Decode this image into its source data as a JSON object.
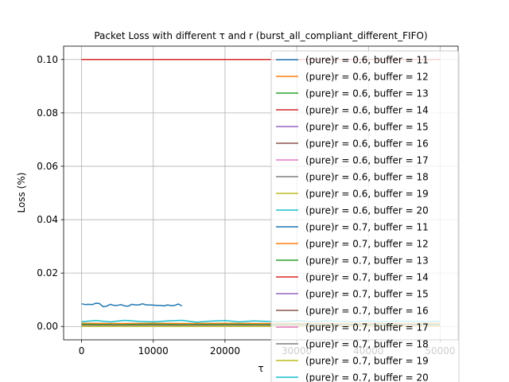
{
  "chart_data": {
    "type": "line",
    "title": "Packet Loss with different τ and r (burst_all_compliant_different_FIFO)",
    "xlabel": "τ",
    "ylabel": "Loss (%)",
    "xlim": [
      -2500,
      52500
    ],
    "ylim": [
      -0.005,
      0.105
    ],
    "x_ticks": [
      0,
      10000,
      20000,
      30000,
      40000,
      50000
    ],
    "x_tick_labels": [
      "0",
      "10000",
      "20000",
      "30000",
      "40000",
      "50000"
    ],
    "y_ticks": [
      0.0,
      0.02,
      0.04,
      0.06,
      0.08,
      0.1
    ],
    "y_tick_labels": [
      "0.00",
      "0.02",
      "0.04",
      "0.06",
      "0.08",
      "0.10"
    ],
    "grid": true,
    "legend_position": "right, overflowing plot area",
    "series": [
      {
        "name": "(pure)r = 0.6, buffer = 11",
        "color": "#1f77b4",
        "x": [
          0,
          500,
          1000,
          1500,
          2000,
          2500,
          3000,
          3500,
          4000,
          4500,
          5000,
          5500,
          6000,
          6500,
          7000,
          7500,
          8000,
          8500,
          9000,
          9500,
          10000,
          10500,
          11000,
          11500,
          12000,
          12500,
          13000,
          13500,
          14000
        ],
        "y": [
          0.0085,
          0.0082,
          0.0083,
          0.0082,
          0.0087,
          0.0086,
          0.0074,
          0.0076,
          0.0083,
          0.0079,
          0.0079,
          0.0082,
          0.0077,
          0.0076,
          0.0083,
          0.0081,
          0.0081,
          0.0085,
          0.0081,
          0.0081,
          0.008,
          0.0079,
          0.0079,
          0.0077,
          0.0081,
          0.0078,
          0.0079,
          0.0084,
          0.0077
        ]
      },
      {
        "name": "(pure)r = 0.6, buffer = 12",
        "color": "#ff7f0e",
        "x": [
          0,
          5000,
          10000,
          15000,
          20000,
          25000,
          30000,
          35000,
          40000,
          45000,
          50000
        ],
        "y": [
          0.0012,
          0.0011,
          0.0012,
          0.0011,
          0.0012,
          0.0011,
          0.0012,
          0.0011,
          0.0012,
          0.0011,
          0.0012
        ]
      },
      {
        "name": "(pure)r = 0.6, buffer = 13",
        "color": "#2ca02c",
        "x": [
          0,
          5000,
          10000,
          15000,
          20000,
          25000,
          30000,
          35000,
          40000,
          45000,
          50000
        ],
        "y": [
          0.0008,
          0.0007,
          0.0008,
          0.0007,
          0.0008,
          0.0007,
          0.0008,
          0.0007,
          0.0008,
          0.0007,
          0.0008
        ]
      },
      {
        "name": "(pure)r = 0.6, buffer = 14",
        "color": "#d62728",
        "x": [
          0,
          50000
        ],
        "y": [
          0.1,
          0.1
        ]
      },
      {
        "name": "(pure)r = 0.6, buffer = 15",
        "color": "#9467bd",
        "x": [
          0,
          5000,
          10000,
          15000,
          20000,
          25000,
          30000,
          35000,
          40000,
          45000,
          50000
        ],
        "y": [
          0.0004,
          0.0004,
          0.0004,
          0.0004,
          0.0004,
          0.0004,
          0.0004,
          0.0004,
          0.0004,
          0.0004,
          0.0004
        ]
      },
      {
        "name": "(pure)r = 0.6, buffer = 16",
        "color": "#8c564b",
        "x": [
          0,
          5000,
          10000,
          15000,
          20000,
          25000,
          30000,
          35000,
          40000,
          45000,
          50000
        ],
        "y": [
          0.0003,
          0.0003,
          0.0003,
          0.0003,
          0.0003,
          0.0003,
          0.0003,
          0.0003,
          0.0003,
          0.0003,
          0.0003
        ]
      },
      {
        "name": "(pure)r = 0.6, buffer = 17",
        "color": "#e377c2",
        "x": [
          0,
          5000,
          10000,
          15000,
          20000,
          25000,
          30000,
          35000,
          40000,
          45000,
          50000
        ],
        "y": [
          0.0002,
          0.0002,
          0.0002,
          0.0002,
          0.0002,
          0.0002,
          0.0002,
          0.0002,
          0.0002,
          0.0002,
          0.0002
        ]
      },
      {
        "name": "(pure)r = 0.6, buffer = 18",
        "color": "#7f7f7f",
        "x": [
          0,
          5000,
          10000,
          15000,
          20000,
          25000,
          30000,
          35000,
          40000,
          45000,
          50000
        ],
        "y": [
          0.0001,
          0.0001,
          0.0001,
          0.0001,
          0.0001,
          0.0001,
          0.0001,
          0.0001,
          0.0001,
          0.0001,
          0.0001
        ]
      },
      {
        "name": "(pure)r = 0.6, buffer = 19",
        "color": "#bcbd22",
        "x": [
          0,
          5000,
          10000,
          15000,
          20000,
          25000,
          30000,
          35000,
          40000,
          45000,
          50000
        ],
        "y": [
          0.0001,
          0.0001,
          0.0001,
          0.0001,
          0.0001,
          0.0001,
          0.0001,
          0.0001,
          0.0001,
          0.0001,
          0.0001
        ]
      },
      {
        "name": "(pure)r = 0.6, buffer = 20",
        "color": "#17becf",
        "x": [
          0,
          2000,
          4000,
          6000,
          8000,
          10000,
          12000,
          14000,
          16000,
          18000,
          20000,
          22000,
          24000,
          26000,
          28000,
          30000,
          32000,
          34000,
          36000,
          38000,
          40000,
          42000,
          44000,
          46000,
          48000,
          50000
        ],
        "y": [
          0.0018,
          0.0022,
          0.0017,
          0.0023,
          0.0019,
          0.0017,
          0.0021,
          0.0023,
          0.0016,
          0.002,
          0.0022,
          0.0017,
          0.0021,
          0.0019,
          0.0018,
          0.0022,
          0.0017,
          0.0021,
          0.0019,
          0.0018,
          0.0021,
          0.0017,
          0.002,
          0.0019,
          0.0018,
          0.002
        ]
      },
      {
        "name": "(pure)r = 0.7, buffer = 11",
        "color": "#1f77b4",
        "x": [],
        "y": []
      },
      {
        "name": "(pure)r = 0.7, buffer = 12",
        "color": "#ff7f0e",
        "x": [],
        "y": []
      },
      {
        "name": "(pure)r = 0.7, buffer = 13",
        "color": "#2ca02c",
        "x": [],
        "y": []
      },
      {
        "name": "(pure)r = 0.7, buffer = 14",
        "color": "#d62728",
        "x": [],
        "y": []
      },
      {
        "name": "(pure)r = 0.7, buffer = 15",
        "color": "#9467bd",
        "x": [],
        "y": []
      },
      {
        "name": "(pure)r = 0.7, buffer = 16",
        "color": "#8c564b",
        "x": [],
        "y": []
      },
      {
        "name": "(pure)r = 0.7, buffer = 17",
        "color": "#e377c2",
        "x": [],
        "y": []
      },
      {
        "name": "(pure)r = 0.7, buffer = 18",
        "color": "#7f7f7f",
        "x": [],
        "y": []
      },
      {
        "name": "(pure)r = 0.7, buffer = 19",
        "color": "#bcbd22",
        "x": [],
        "y": []
      },
      {
        "name": "(pure)r = 0.7, buffer = 20",
        "color": "#17becf",
        "x": [],
        "y": []
      }
    ]
  }
}
